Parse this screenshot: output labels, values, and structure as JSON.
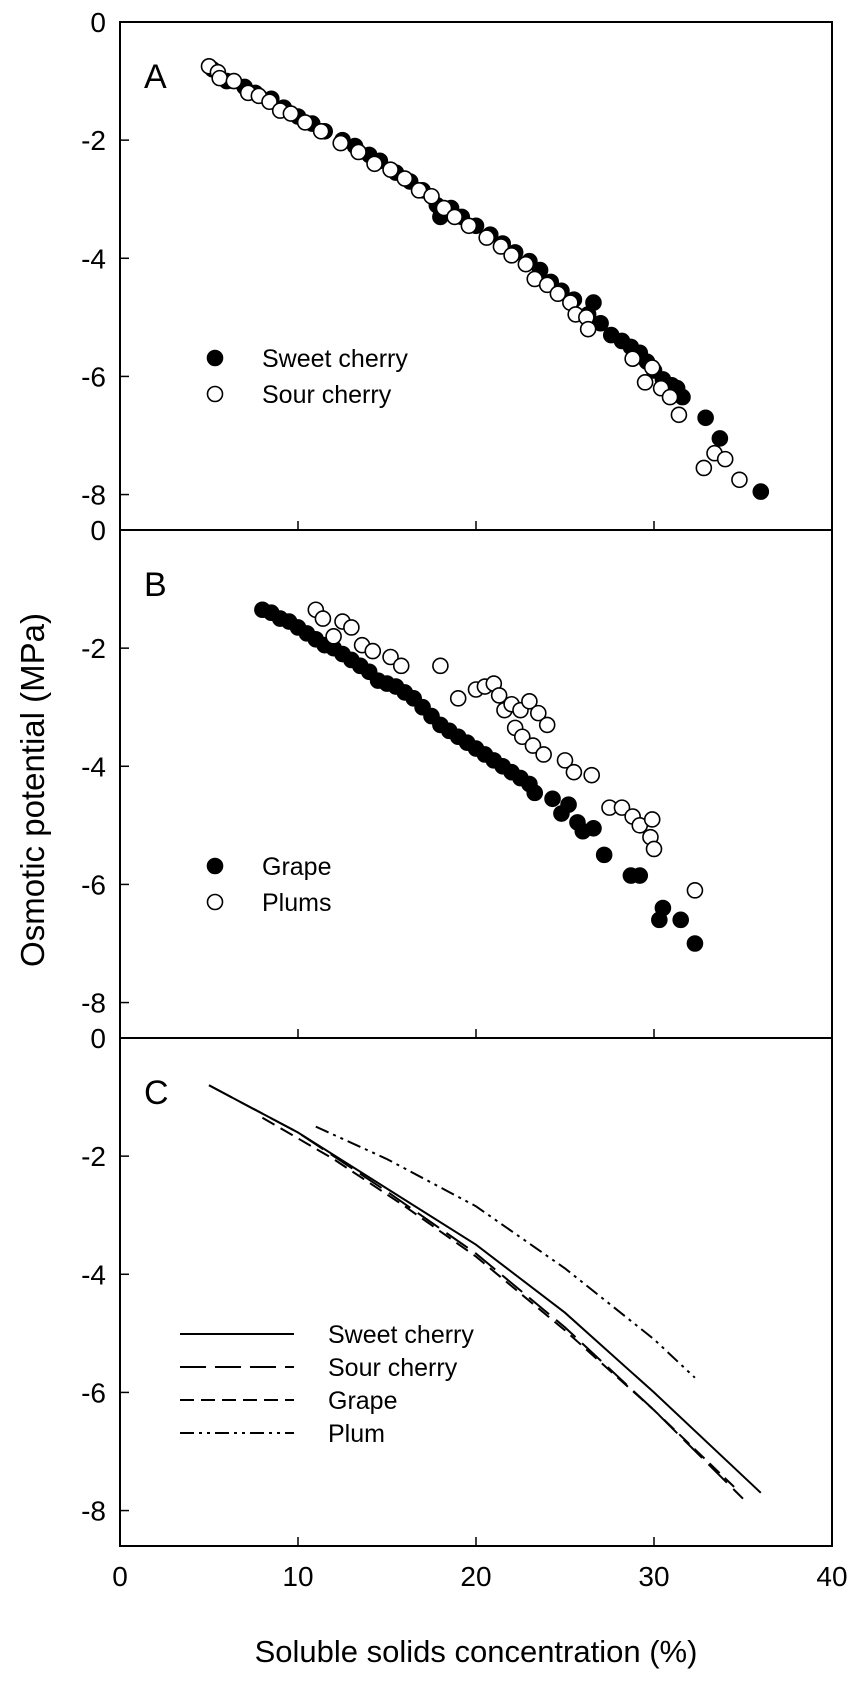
{
  "chart_data": {
    "type": "scatter",
    "ylabel": "Osmotic potential (MPa)",
    "xlabel": "Soluble solids concentration (%)",
    "xlim": [
      0,
      40
    ],
    "x_ticks": [
      "0",
      "10",
      "20",
      "30",
      "40"
    ],
    "panels": [
      {
        "letter": "A",
        "kind": "scatter",
        "ylim": [
          -8.6,
          0
        ],
        "y_ticks": [
          "0",
          "-2",
          "-4",
          "-6",
          "-8"
        ],
        "legend": [
          "Sweet cherry",
          "Sour cherry"
        ],
        "series": [
          {
            "name": "Sweet cherry",
            "marker": "filled",
            "points": [
              [
                5.2,
                -0.8
              ],
              [
                6.0,
                -1.0
              ],
              [
                7.0,
                -1.1
              ],
              [
                7.6,
                -1.2
              ],
              [
                8.5,
                -1.3
              ],
              [
                9.2,
                -1.45
              ],
              [
                10.0,
                -1.6
              ],
              [
                10.8,
                -1.72
              ],
              [
                11.5,
                -1.85
              ],
              [
                12.5,
                -2.0
              ],
              [
                13.2,
                -2.1
              ],
              [
                14.0,
                -2.25
              ],
              [
                14.6,
                -2.35
              ],
              [
                15.5,
                -2.55
              ],
              [
                16.3,
                -2.7
              ],
              [
                17.0,
                -2.85
              ],
              [
                17.8,
                -3.1
              ],
              [
                18.0,
                -3.3
              ],
              [
                18.6,
                -3.15
              ],
              [
                19.2,
                -3.3
              ],
              [
                20.0,
                -3.45
              ],
              [
                20.8,
                -3.6
              ],
              [
                21.5,
                -3.75
              ],
              [
                22.2,
                -3.9
              ],
              [
                23.0,
                -4.05
              ],
              [
                23.6,
                -4.2
              ],
              [
                24.2,
                -4.4
              ],
              [
                24.8,
                -4.55
              ],
              [
                25.5,
                -4.7
              ],
              [
                26.3,
                -4.95
              ],
              [
                26.6,
                -4.75
              ],
              [
                27.0,
                -5.1
              ],
              [
                27.6,
                -5.3
              ],
              [
                28.2,
                -5.4
              ],
              [
                28.7,
                -5.5
              ],
              [
                29.2,
                -5.6
              ],
              [
                29.6,
                -5.75
              ],
              [
                30.0,
                -5.9
              ],
              [
                30.5,
                -6.05
              ],
              [
                31.0,
                -6.15
              ],
              [
                31.3,
                -6.2
              ],
              [
                31.6,
                -6.35
              ],
              [
                32.9,
                -6.7
              ],
              [
                33.7,
                -7.05
              ],
              [
                36.0,
                -7.95
              ]
            ]
          },
          {
            "name": "Sour cherry",
            "marker": "open",
            "points": [
              [
                5.0,
                -0.75
              ],
              [
                5.5,
                -0.85
              ],
              [
                5.6,
                -0.95
              ],
              [
                6.4,
                -1.0
              ],
              [
                7.2,
                -1.2
              ],
              [
                7.8,
                -1.25
              ],
              [
                8.4,
                -1.35
              ],
              [
                9.0,
                -1.5
              ],
              [
                9.6,
                -1.55
              ],
              [
                10.4,
                -1.7
              ],
              [
                11.3,
                -1.85
              ],
              [
                12.4,
                -2.05
              ],
              [
                13.4,
                -2.2
              ],
              [
                14.3,
                -2.4
              ],
              [
                15.2,
                -2.5
              ],
              [
                16.0,
                -2.65
              ],
              [
                16.8,
                -2.85
              ],
              [
                17.5,
                -2.95
              ],
              [
                18.2,
                -3.15
              ],
              [
                18.8,
                -3.3
              ],
              [
                19.6,
                -3.45
              ],
              [
                20.6,
                -3.65
              ],
              [
                21.4,
                -3.8
              ],
              [
                22.0,
                -3.95
              ],
              [
                22.8,
                -4.1
              ],
              [
                23.3,
                -4.35
              ],
              [
                24.0,
                -4.45
              ],
              [
                24.6,
                -4.6
              ],
              [
                25.3,
                -4.75
              ],
              [
                25.6,
                -4.95
              ],
              [
                26.2,
                -5.0
              ],
              [
                26.3,
                -5.2
              ],
              [
                28.8,
                -5.7
              ],
              [
                29.5,
                -6.1
              ],
              [
                29.9,
                -5.85
              ],
              [
                30.4,
                -6.2
              ],
              [
                30.9,
                -6.35
              ],
              [
                31.4,
                -6.65
              ],
              [
                32.8,
                -7.55
              ],
              [
                33.4,
                -7.3
              ],
              [
                34.0,
                -7.4
              ],
              [
                34.8,
                -7.75
              ]
            ]
          }
        ]
      },
      {
        "letter": "B",
        "kind": "scatter",
        "ylim": [
          -8.6,
          0
        ],
        "y_ticks": [
          "0",
          "-2",
          "-4",
          "-6",
          "-8"
        ],
        "legend": [
          "Grape",
          "Plums"
        ],
        "series": [
          {
            "name": "Grape",
            "marker": "filled",
            "points": [
              [
                8.0,
                -1.35
              ],
              [
                8.5,
                -1.4
              ],
              [
                9.0,
                -1.5
              ],
              [
                9.5,
                -1.55
              ],
              [
                10.0,
                -1.65
              ],
              [
                10.5,
                -1.75
              ],
              [
                11.0,
                -1.85
              ],
              [
                11.5,
                -1.95
              ],
              [
                12.0,
                -2.0
              ],
              [
                12.5,
                -2.1
              ],
              [
                13.0,
                -2.2
              ],
              [
                13.5,
                -2.3
              ],
              [
                14.0,
                -2.4
              ],
              [
                14.5,
                -2.55
              ],
              [
                15.0,
                -2.6
              ],
              [
                15.5,
                -2.65
              ],
              [
                16.0,
                -2.75
              ],
              [
                16.5,
                -2.85
              ],
              [
                17.0,
                -3.0
              ],
              [
                17.5,
                -3.15
              ],
              [
                18.0,
                -3.3
              ],
              [
                18.5,
                -3.4
              ],
              [
                19.0,
                -3.5
              ],
              [
                19.5,
                -3.6
              ],
              [
                20.0,
                -3.7
              ],
              [
                20.5,
                -3.8
              ],
              [
                21.0,
                -3.9
              ],
              [
                21.5,
                -4.0
              ],
              [
                22.0,
                -4.1
              ],
              [
                22.5,
                -4.2
              ],
              [
                23.0,
                -4.3
              ],
              [
                23.3,
                -4.45
              ],
              [
                24.3,
                -4.55
              ],
              [
                24.8,
                -4.8
              ],
              [
                25.2,
                -4.65
              ],
              [
                25.7,
                -4.95
              ],
              [
                26.0,
                -5.1
              ],
              [
                26.6,
                -5.05
              ],
              [
                27.2,
                -5.5
              ],
              [
                28.7,
                -5.85
              ],
              [
                29.2,
                -5.85
              ],
              [
                30.3,
                -6.6
              ],
              [
                30.5,
                -6.4
              ],
              [
                31.5,
                -6.6
              ],
              [
                32.3,
                -7.0
              ]
            ]
          },
          {
            "name": "Plums",
            "marker": "open",
            "points": [
              [
                11.0,
                -1.35
              ],
              [
                11.4,
                -1.5
              ],
              [
                12.0,
                -1.8
              ],
              [
                12.5,
                -1.55
              ],
              [
                13.0,
                -1.65
              ],
              [
                13.6,
                -1.95
              ],
              [
                14.2,
                -2.05
              ],
              [
                15.2,
                -2.15
              ],
              [
                15.8,
                -2.3
              ],
              [
                18.0,
                -2.3
              ],
              [
                19.0,
                -2.85
              ],
              [
                20.0,
                -2.7
              ],
              [
                20.5,
                -2.65
              ],
              [
                21.0,
                -2.6
              ],
              [
                21.3,
                -2.8
              ],
              [
                21.6,
                -3.05
              ],
              [
                22.0,
                -2.95
              ],
              [
                22.5,
                -3.05
              ],
              [
                23.0,
                -2.9
              ],
              [
                23.5,
                -3.1
              ],
              [
                24.0,
                -3.3
              ],
              [
                22.2,
                -3.35
              ],
              [
                22.6,
                -3.5
              ],
              [
                23.2,
                -3.65
              ],
              [
                23.8,
                -3.8
              ],
              [
                25.0,
                -3.9
              ],
              [
                25.5,
                -4.1
              ],
              [
                26.5,
                -4.15
              ],
              [
                27.5,
                -4.7
              ],
              [
                28.2,
                -4.7
              ],
              [
                28.8,
                -4.85
              ],
              [
                29.2,
                -5.0
              ],
              [
                29.9,
                -4.9
              ],
              [
                29.8,
                -5.2
              ],
              [
                30.0,
                -5.4
              ],
              [
                32.3,
                -6.1
              ]
            ]
          }
        ]
      },
      {
        "letter": "C",
        "kind": "line",
        "ylim": [
          -8.6,
          0
        ],
        "y_ticks": [
          "0",
          "-2",
          "-4",
          "-6",
          "-8"
        ],
        "legend": [
          "Sweet cherry",
          "Sour cherry",
          "Grape",
          "Plum"
        ],
        "series": [
          {
            "name": "Sweet cherry",
            "dash": "solid",
            "x": [
              5,
              10,
              15,
              20,
              25,
              30,
              36
            ],
            "y": [
              -0.8,
              -1.6,
              -2.55,
              -3.5,
              -4.65,
              -6.0,
              -7.7
            ]
          },
          {
            "name": "Sour cherry",
            "dash": "longdash",
            "x": [
              5,
              10,
              15,
              20,
              25,
              30,
              35
            ],
            "y": [
              -0.8,
              -1.6,
              -2.6,
              -3.65,
              -4.9,
              -6.3,
              -7.8
            ]
          },
          {
            "name": "Grape",
            "dash": "dash",
            "x": [
              8,
              12,
              16,
              20,
              25,
              30,
              34.5
            ],
            "y": [
              -1.35,
              -2.05,
              -2.85,
              -3.7,
              -4.95,
              -6.3,
              -7.6
            ]
          },
          {
            "name": "Plum",
            "dash": "dashdotdot",
            "x": [
              11,
              15,
              20,
              25,
              30,
              32.3
            ],
            "y": [
              -1.5,
              -2.05,
              -2.85,
              -3.9,
              -5.1,
              -5.75
            ]
          }
        ]
      }
    ]
  }
}
